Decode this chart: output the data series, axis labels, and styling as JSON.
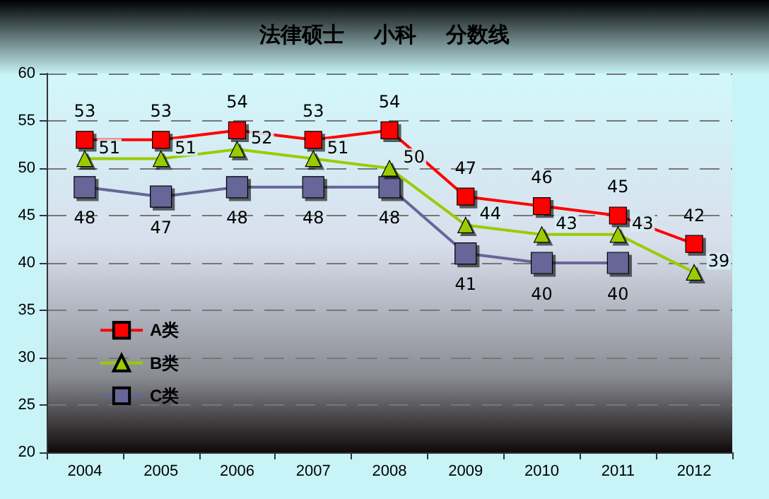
{
  "chart_data": {
    "type": "line",
    "title": "法律硕士    小科    分数线",
    "categories": [
      "2004",
      "2005",
      "2006",
      "2007",
      "2008",
      "2009",
      "2010",
      "2011",
      "2012"
    ],
    "series": [
      {
        "name": "A类",
        "color": "#ff0000",
        "marker": "square",
        "values": [
          53,
          53,
          54,
          53,
          54,
          47,
          46,
          45,
          42
        ]
      },
      {
        "name": "B类",
        "color": "#99cc00",
        "marker": "triangle",
        "values": [
          51,
          51,
          52,
          51,
          50,
          44,
          43,
          43,
          39
        ]
      },
      {
        "name": "C类",
        "color": "#666699",
        "marker": "square",
        "values": [
          48,
          47,
          48,
          48,
          48,
          41,
          40,
          40,
          null
        ]
      }
    ],
    "ylim": [
      20,
      60
    ],
    "yticks": [
      20,
      25,
      30,
      35,
      40,
      45,
      50,
      55,
      60
    ],
    "grid": "y",
    "legend": "bottom left",
    "data_labels": true,
    "line_style": "solid"
  }
}
